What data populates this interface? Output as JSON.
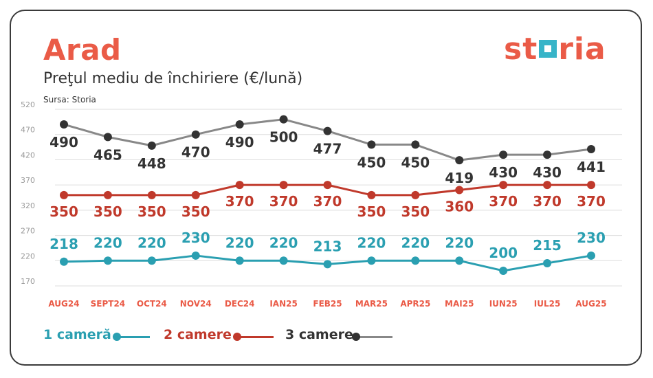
{
  "header": {
    "city": "Arad",
    "subtitle": "Preţul mediu de închiriere (€/lună)",
    "source": "Sursa: Storia",
    "logo_left": "st",
    "logo_right": "ria"
  },
  "chart_data": {
    "type": "line",
    "title": "Preţul mediu de închiriere (€/lună)",
    "categories": [
      "AUG24",
      "SEPT24",
      "OCT24",
      "NOV24",
      "DEC24",
      "IAN25",
      "FEB25",
      "MAR25",
      "APR25",
      "MAI25",
      "IUN25",
      "IUL25",
      "AUG25"
    ],
    "y_ticks": [
      520,
      470,
      420,
      370,
      320,
      270,
      220,
      170
    ],
    "ylim": [
      170,
      520
    ],
    "grid": true,
    "legend_position": "bottom-left",
    "series": [
      {
        "name": "1 cameră",
        "color": "#2a9fb1",
        "values": [
          218,
          220,
          220,
          230,
          220,
          220,
          213,
          220,
          220,
          220,
          200,
          215,
          230
        ]
      },
      {
        "name": "2 camere",
        "color": "#c0392b",
        "values": [
          350,
          350,
          350,
          350,
          370,
          370,
          370,
          350,
          350,
          360,
          370,
          370,
          370
        ]
      },
      {
        "name": "3 camere",
        "color": "#333333",
        "values": [
          490,
          465,
          448,
          470,
          490,
          500,
          477,
          450,
          450,
          419,
          430,
          430,
          441
        ]
      }
    ]
  },
  "colors": {
    "accent": "#ea5b47",
    "line_3": "#888888",
    "grid": "#dddddd",
    "tick": "#999999"
  }
}
